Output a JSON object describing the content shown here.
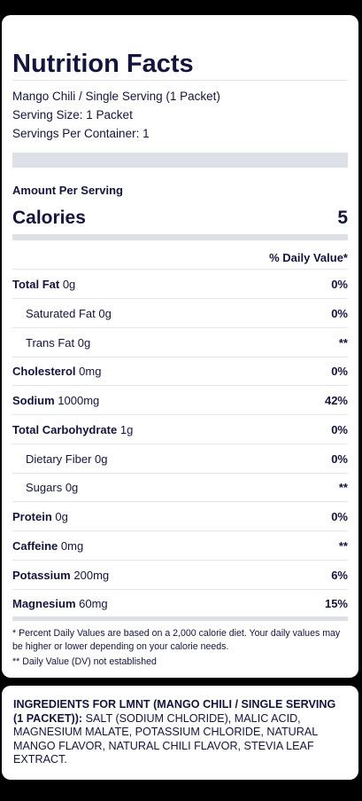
{
  "panel": {
    "title": "Nutrition Facts",
    "product_line": "Mango Chili / Single Serving (1 Packet)",
    "serving_size": "Serving Size: 1 Packet",
    "servings_per_container": "Servings Per Container: 1",
    "amount_per_serving": "Amount Per Serving",
    "calories_label": "Calories",
    "calories_value": "5",
    "daily_value_header": "% Daily Value*"
  },
  "nutrients": [
    {
      "name": "Total Fat",
      "amount": "0g",
      "dv": "0%",
      "sub": false
    },
    {
      "name": "Saturated Fat",
      "amount": "0g",
      "dv": "0%",
      "sub": true
    },
    {
      "name": "Trans Fat",
      "amount": "0g",
      "dv": "**",
      "sub": true
    },
    {
      "name": "Cholesterol",
      "amount": "0mg",
      "dv": "0%",
      "sub": false
    },
    {
      "name": "Sodium",
      "amount": "1000mg",
      "dv": "42%",
      "sub": false
    },
    {
      "name": "Total Carbohydrate",
      "amount": "1g",
      "dv": "0%",
      "sub": false
    },
    {
      "name": "Dietary Fiber",
      "amount": "0g",
      "dv": "0%",
      "sub": true
    },
    {
      "name": "Sugars",
      "amount": "0g",
      "dv": "**",
      "sub": true
    },
    {
      "name": "Protein",
      "amount": "0g",
      "dv": "0%",
      "sub": false
    },
    {
      "name": "Caffeine",
      "amount": "0mg",
      "dv": "**",
      "sub": false
    },
    {
      "name": "Potassium",
      "amount": "200mg",
      "dv": "6%",
      "sub": false
    },
    {
      "name": "Magnesium",
      "amount": "60mg",
      "dv": "15%",
      "sub": false
    }
  ],
  "footnotes": {
    "daily_values": "* Percent Daily Values are based on a 2,000 calorie diet. Your daily values may be higher or lower depending on your calorie needs.",
    "not_established": "** Daily Value (DV) not established"
  },
  "ingredients": {
    "heading": "INGREDIENTS FOR LMNT (MANGO CHILI / SINGLE SERVING (1 PACKET)):",
    "list": "SALT (SODIUM CHLORIDE), MALIC ACID, MAGNESIUM MALATE, POTASSIUM CHLORIDE, NATURAL MANGO FLAVOR, NATURAL CHILI FLAVOR, STEVIA LEAF EXTRACT."
  },
  "colors": {
    "background": "#000000",
    "card": "#ffffff",
    "text": "#14143c",
    "divider": "#e4e6ea",
    "bar": "#dde1e7"
  }
}
